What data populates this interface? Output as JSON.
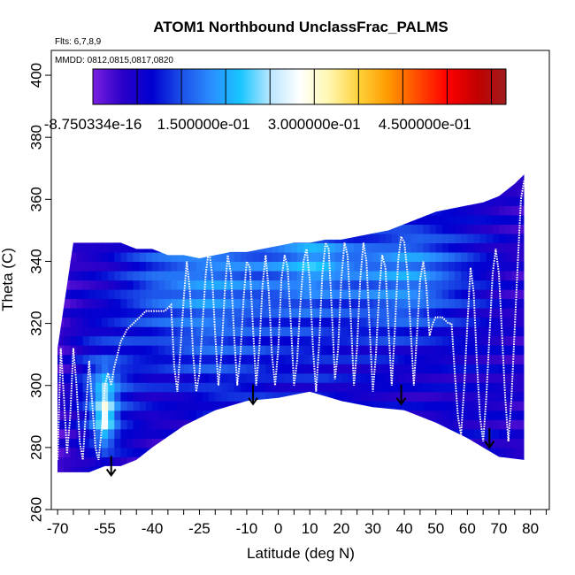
{
  "chart_data": {
    "type": "heatmap",
    "title": "ATOM1 Northbound UnclassFrac_PALMS",
    "flights_note": "Flts: 6,7,8,9",
    "dates_note": "MMDD: 0812,0815,0817,0820",
    "xlabel": "Latitude (deg N)",
    "ylabel": "Theta (C)",
    "xlim": [
      -72,
      86
    ],
    "ylim": [
      260,
      408
    ],
    "x_ticks_minor": [
      -70,
      -65,
      -60,
      -55,
      -50,
      -45,
      -40,
      -35,
      -30,
      -25,
      -20,
      -15,
      -10,
      -5,
      0,
      5,
      10,
      15,
      20,
      25,
      30,
      35,
      40,
      45,
      50,
      55,
      60,
      65,
      70,
      75,
      80,
      85
    ],
    "x_tick_labels": [
      {
        "v": -70,
        "t": "-70"
      },
      {
        "v": -55,
        "t": "-55"
      },
      {
        "v": -40,
        "t": "-40"
      },
      {
        "v": -25,
        "t": "-25"
      },
      {
        "v": -10,
        "t": "-10"
      },
      {
        "v": 0,
        "t": "0"
      },
      {
        "v": 10,
        "t": "10"
      },
      {
        "v": 20,
        "t": "20"
      },
      {
        "v": 30,
        "t": "30"
      },
      {
        "v": 40,
        "t": "40"
      },
      {
        "v": 50,
        "t": "50"
      },
      {
        "v": 60,
        "t": "60"
      },
      {
        "v": 70,
        "t": "70"
      },
      {
        "v": 80,
        "t": "80"
      }
    ],
    "y_ticks": [
      260,
      280,
      300,
      320,
      340,
      360,
      380,
      400
    ],
    "y_tick_labels": [
      "260",
      "280",
      "300",
      "320",
      "340",
      "360",
      "380",
      "400"
    ],
    "colorbar": {
      "min": -8.750334e-16,
      "max": 0.56,
      "tick_values": [
        0,
        0.15,
        0.3,
        0.45
      ],
      "labels": [
        "-8.750334e-16",
        "1.500000e-01",
        "3.000000e-01",
        "4.500000e-01"
      ],
      "colors": [
        "#7b1fe0",
        "#2a00c8",
        "#0000d0",
        "#1c4fe8",
        "#2a8dff",
        "#18c6ff",
        "#b8e6ff",
        "#ffffff",
        "#fff7b0",
        "#ffd23a",
        "#ff9a00",
        "#ff4b00",
        "#ff0000",
        "#c40000",
        "#a01c1c"
      ]
    },
    "domain_top": {
      "lat": [
        -70,
        -65,
        -60,
        -55,
        -50,
        -45,
        -40,
        -35,
        -30,
        -25,
        -20,
        -15,
        -10,
        -5,
        0,
        5,
        10,
        15,
        20,
        25,
        30,
        35,
        40,
        45,
        50,
        55,
        60,
        65,
        70,
        75,
        78
      ],
      "theta": [
        312,
        346,
        346,
        346,
        346,
        344,
        344,
        342,
        342,
        341,
        342,
        343,
        343,
        344,
        345,
        346,
        346,
        347,
        347,
        348,
        349,
        350,
        352,
        354,
        356,
        357,
        358,
        359,
        361,
        365,
        368
      ]
    },
    "domain_bottom": {
      "lat": [
        -70,
        -60,
        -55,
        -50,
        -45,
        -40,
        -30,
        -20,
        -10,
        0,
        10,
        20,
        30,
        40,
        50,
        60,
        70,
        78
      ],
      "theta": [
        272,
        272,
        274,
        274,
        276,
        280,
        287,
        292,
        295,
        296,
        298,
        295,
        293,
        292,
        288,
        283,
        277,
        276
      ]
    },
    "field": {
      "comment": "UnclassFrac values at (lat, theta) grid nodes",
      "lat_nodes": [
        -70,
        -65,
        -60,
        -55,
        -50,
        -45,
        -40,
        -35,
        -30,
        -25,
        -20,
        -15,
        -10,
        -5,
        0,
        5,
        10,
        15,
        20,
        25,
        30,
        35,
        40,
        45,
        50,
        55,
        60,
        65,
        70,
        75,
        80
      ],
      "theta_nodes": [
        270,
        280,
        290,
        300,
        310,
        320,
        330,
        340,
        350,
        360,
        370
      ],
      "values": [
        [
          0.02,
          0.03,
          0.03,
          0.06,
          0.05,
          0.04,
          0.04,
          0.03,
          0.03,
          0.04,
          0.04,
          0.05,
          0.05,
          0.05,
          0.04,
          0.04,
          0.04,
          0.05,
          0.05,
          0.04,
          0.04,
          0.05,
          0.05,
          0.05,
          0.05,
          0.06,
          0.05,
          0.05,
          0.04,
          0.04,
          0.04
        ],
        [
          0.03,
          0.05,
          0.08,
          0.12,
          0.08,
          0.06,
          0.05,
          0.05,
          0.05,
          0.05,
          0.05,
          0.05,
          0.06,
          0.06,
          0.06,
          0.06,
          0.06,
          0.06,
          0.06,
          0.05,
          0.05,
          0.05,
          0.06,
          0.05,
          0.05,
          0.06,
          0.06,
          0.07,
          0.06,
          0.05,
          0.05
        ],
        [
          0.04,
          0.06,
          0.1,
          0.3,
          0.1,
          0.08,
          0.06,
          0.06,
          0.06,
          0.07,
          0.08,
          0.08,
          0.08,
          0.08,
          0.07,
          0.07,
          0.07,
          0.07,
          0.07,
          0.06,
          0.06,
          0.06,
          0.06,
          0.06,
          0.06,
          0.07,
          0.06,
          0.06,
          0.06,
          0.05,
          0.05
        ],
        [
          0.04,
          0.07,
          0.12,
          0.22,
          0.12,
          0.09,
          0.08,
          0.08,
          0.08,
          0.09,
          0.1,
          0.1,
          0.09,
          0.09,
          0.08,
          0.08,
          0.08,
          0.08,
          0.07,
          0.07,
          0.07,
          0.07,
          0.06,
          0.06,
          0.06,
          0.06,
          0.06,
          0.06,
          0.06,
          0.05,
          0.05
        ],
        [
          0.03,
          0.06,
          0.09,
          0.1,
          0.1,
          0.09,
          0.09,
          0.1,
          0.11,
          0.12,
          0.12,
          0.11,
          0.11,
          0.1,
          0.09,
          0.09,
          0.09,
          0.09,
          0.08,
          0.08,
          0.08,
          0.08,
          0.07,
          0.07,
          0.07,
          0.07,
          0.07,
          0.06,
          0.06,
          0.05,
          0.05
        ],
        [
          0.03,
          0.05,
          0.07,
          0.08,
          0.09,
          0.1,
          0.11,
          0.12,
          0.13,
          0.14,
          0.14,
          0.13,
          0.12,
          0.11,
          0.11,
          0.11,
          0.11,
          0.1,
          0.1,
          0.1,
          0.11,
          0.12,
          0.12,
          0.11,
          0.1,
          0.09,
          0.08,
          0.07,
          0.06,
          0.05,
          0.05
        ],
        [
          0.03,
          0.05,
          0.06,
          0.07,
          0.09,
          0.11,
          0.13,
          0.14,
          0.15,
          0.16,
          0.16,
          0.15,
          0.14,
          0.13,
          0.13,
          0.14,
          0.15,
          0.14,
          0.13,
          0.13,
          0.14,
          0.15,
          0.16,
          0.15,
          0.13,
          0.11,
          0.09,
          0.08,
          0.06,
          0.05,
          0.04
        ],
        [
          0.02,
          0.04,
          0.05,
          0.06,
          0.08,
          0.1,
          0.12,
          0.13,
          0.14,
          0.15,
          0.15,
          0.15,
          0.14,
          0.14,
          0.15,
          0.17,
          0.2,
          0.19,
          0.16,
          0.15,
          0.15,
          0.16,
          0.17,
          0.16,
          0.14,
          0.12,
          0.1,
          0.08,
          0.06,
          0.05,
          0.04
        ],
        [
          0.02,
          0.03,
          0.04,
          0.05,
          0.06,
          0.07,
          0.08,
          0.09,
          0.1,
          0.1,
          0.1,
          0.1,
          0.1,
          0.1,
          0.11,
          0.12,
          0.13,
          0.12,
          0.11,
          0.1,
          0.1,
          0.1,
          0.11,
          0.11,
          0.1,
          0.09,
          0.08,
          0.07,
          0.06,
          0.05,
          0.04
        ],
        [
          0.02,
          0.03,
          0.03,
          0.04,
          0.04,
          0.05,
          0.05,
          0.05,
          0.06,
          0.06,
          0.06,
          0.06,
          0.06,
          0.06,
          0.06,
          0.07,
          0.07,
          0.07,
          0.06,
          0.06,
          0.06,
          0.06,
          0.06,
          0.06,
          0.06,
          0.06,
          0.06,
          0.06,
          0.05,
          0.05,
          0.04
        ],
        [
          0.02,
          0.02,
          0.02,
          0.03,
          0.03,
          0.03,
          0.03,
          0.03,
          0.04,
          0.04,
          0.04,
          0.04,
          0.04,
          0.04,
          0.04,
          0.04,
          0.04,
          0.04,
          0.04,
          0.04,
          0.04,
          0.04,
          0.04,
          0.04,
          0.04,
          0.04,
          0.04,
          0.04,
          0.04,
          0.04,
          0.04
        ]
      ]
    },
    "flight_track": [
      [
        -70,
        276
      ],
      [
        -69,
        312
      ],
      [
        -68,
        296
      ],
      [
        -67,
        278
      ],
      [
        -66,
        290
      ],
      [
        -65,
        312
      ],
      [
        -64,
        300
      ],
      [
        -63,
        282
      ],
      [
        -62,
        276
      ],
      [
        -61,
        292
      ],
      [
        -60,
        308
      ],
      [
        -59,
        294
      ],
      [
        -58,
        280
      ],
      [
        -57,
        276
      ],
      [
        -56,
        286
      ],
      [
        -55,
        300
      ],
      [
        -54,
        304
      ],
      [
        -53,
        300
      ],
      [
        -52,
        306
      ],
      [
        -51,
        310
      ],
      [
        -50,
        314
      ],
      [
        -48,
        318
      ],
      [
        -46,
        320
      ],
      [
        -44,
        322
      ],
      [
        -42,
        324
      ],
      [
        -40,
        324
      ],
      [
        -38,
        324
      ],
      [
        -36,
        324
      ],
      [
        -34,
        326
      ],
      [
        -33,
        306
      ],
      [
        -32,
        298
      ],
      [
        -31,
        312
      ],
      [
        -30,
        328
      ],
      [
        -29,
        340
      ],
      [
        -28,
        330
      ],
      [
        -27,
        310
      ],
      [
        -26,
        298
      ],
      [
        -25,
        304
      ],
      [
        -24,
        320
      ],
      [
        -23,
        336
      ],
      [
        -22,
        344
      ],
      [
        -21,
        336
      ],
      [
        -20,
        316
      ],
      [
        -19,
        300
      ],
      [
        -18,
        310
      ],
      [
        -17,
        330
      ],
      [
        -16,
        342
      ],
      [
        -15,
        336
      ],
      [
        -14,
        316
      ],
      [
        -13,
        300
      ],
      [
        -12,
        310
      ],
      [
        -11,
        328
      ],
      [
        -10,
        340
      ],
      [
        -9,
        338
      ],
      [
        -8,
        318
      ],
      [
        -7,
        300
      ],
      [
        -6,
        312
      ],
      [
        -5,
        332
      ],
      [
        -4,
        342
      ],
      [
        -3,
        330
      ],
      [
        -2,
        310
      ],
      [
        -1,
        300
      ],
      [
        0,
        312
      ],
      [
        1,
        334
      ],
      [
        2,
        342
      ],
      [
        3,
        338
      ],
      [
        4,
        320
      ],
      [
        5,
        300
      ],
      [
        6,
        308
      ],
      [
        7,
        326
      ],
      [
        8,
        340
      ],
      [
        9,
        344
      ],
      [
        10,
        334
      ],
      [
        11,
        312
      ],
      [
        12,
        298
      ],
      [
        13,
        314
      ],
      [
        14,
        336
      ],
      [
        15,
        346
      ],
      [
        16,
        344
      ],
      [
        17,
        324
      ],
      [
        18,
        302
      ],
      [
        19,
        312
      ],
      [
        20,
        334
      ],
      [
        21,
        346
      ],
      [
        22,
        342
      ],
      [
        23,
        322
      ],
      [
        24,
        300
      ],
      [
        25,
        312
      ],
      [
        26,
        334
      ],
      [
        27,
        346
      ],
      [
        28,
        340
      ],
      [
        29,
        318
      ],
      [
        30,
        298
      ],
      [
        31,
        310
      ],
      [
        32,
        330
      ],
      [
        33,
        342
      ],
      [
        34,
        338
      ],
      [
        35,
        318
      ],
      [
        36,
        300
      ],
      [
        37,
        318
      ],
      [
        38,
        340
      ],
      [
        39,
        348
      ],
      [
        40,
        346
      ],
      [
        41,
        336
      ],
      [
        42,
        318
      ],
      [
        43,
        300
      ],
      [
        44,
        316
      ],
      [
        45,
        334
      ],
      [
        46,
        340
      ],
      [
        47,
        332
      ],
      [
        48,
        316
      ],
      [
        49,
        320
      ],
      [
        50,
        322
      ],
      [
        52,
        322
      ],
      [
        54,
        320
      ],
      [
        55,
        320
      ],
      [
        56,
        304
      ],
      [
        57,
        290
      ],
      [
        58,
        284
      ],
      [
        59,
        300
      ],
      [
        60,
        320
      ],
      [
        61,
        338
      ],
      [
        62,
        330
      ],
      [
        63,
        308
      ],
      [
        64,
        290
      ],
      [
        65,
        282
      ],
      [
        66,
        296
      ],
      [
        67,
        316
      ],
      [
        68,
        336
      ],
      [
        69,
        344
      ],
      [
        70,
        336
      ],
      [
        71,
        316
      ],
      [
        72,
        296
      ],
      [
        73,
        282
      ],
      [
        74,
        296
      ],
      [
        75,
        318
      ],
      [
        76,
        340
      ],
      [
        77,
        360
      ],
      [
        78,
        366
      ]
    ],
    "arrows": [
      {
        "lat": -53,
        "theta": 271
      },
      {
        "lat": -8,
        "theta": 294
      },
      {
        "lat": 39,
        "theta": 294
      },
      {
        "lat": 67,
        "theta": 280
      }
    ]
  }
}
